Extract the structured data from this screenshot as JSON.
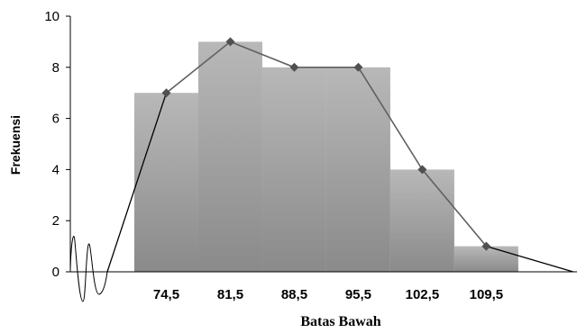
{
  "chart_data": {
    "type": "bar",
    "subtype": "histogram with frequency polygon",
    "title": "",
    "xlabel": "Batas  Bawah",
    "ylabel": "Frekuensi",
    "ylim": [
      0,
      10
    ],
    "yticks": [
      0,
      2,
      4,
      6,
      8,
      10
    ],
    "categories": [
      "74,5",
      "81,5",
      "88,5",
      "95,5",
      "102,5",
      "109,5"
    ],
    "bars": [
      {
        "from": 74.5,
        "to": 81.5,
        "value": 7
      },
      {
        "from": 81.5,
        "to": 88.5,
        "value": 9
      },
      {
        "from": 88.5,
        "to": 95.5,
        "value": 8
      },
      {
        "from": 95.5,
        "to": 102.5,
        "value": 8
      },
      {
        "from": 102.5,
        "to": 109.5,
        "value": 4
      },
      {
        "from": 109.5,
        "to": 116.5,
        "value": 1
      }
    ],
    "polygon": {
      "points": [
        {
          "x": 78,
          "y": 7
        },
        {
          "x": 85,
          "y": 9
        },
        {
          "x": 92,
          "y": 8
        },
        {
          "x": 99,
          "y": 8
        },
        {
          "x": 106,
          "y": 4
        },
        {
          "x": 113,
          "y": 1
        }
      ],
      "closing_point": {
        "x": 122.5,
        "y": 0
      }
    },
    "grid": false,
    "legend": "none",
    "colors": {
      "bar_top": "#b8b8b8",
      "bar_bottom": "#8a8a8a",
      "line": "#606060",
      "marker": "#505050",
      "axis": "#000000"
    }
  }
}
